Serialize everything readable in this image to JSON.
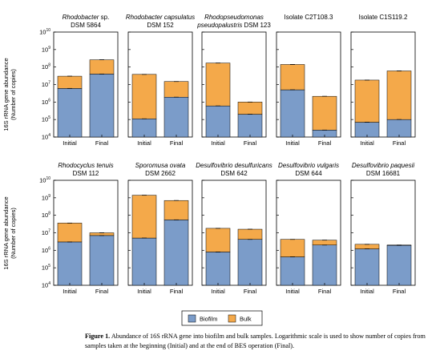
{
  "figure": {
    "caption_lead": "Figure 1.",
    "caption_text": "Abundance of 16S rRNA gene into biofilm and bulk samples. Logarithmic scale is used to show number of copies from samples taken at the beginning (Initial) and at the end of BES operation (Final).",
    "ylabel_line1": "16S rRNA gene abundance",
    "ylabel_line2": "(Number of copies)",
    "legend": [
      {
        "label": "Biofilm",
        "color": "#7b9cc9"
      },
      {
        "label": "Bulk",
        "color": "#f4a94a"
      }
    ]
  },
  "chart_data": [
    {
      "type": "bar",
      "stacked": true,
      "scale": "log",
      "ylim": [
        10000,
        10000000000
      ],
      "yticks": [
        "10^4",
        "10^5",
        "10^6",
        "10^7",
        "10^8",
        "10^9",
        "10^10"
      ],
      "title_italic": "Rhodobacter",
      "title_rest": " sp.",
      "title_line2": "DSM 5864",
      "categories": [
        "Initial",
        "Final"
      ],
      "series": [
        {
          "name": "Biofilm",
          "values": [
            6000000,
            40000000
          ]
        },
        {
          "name": "Bulk",
          "values": [
            24000000,
            220000000
          ]
        }
      ]
    },
    {
      "type": "bar",
      "stacked": true,
      "scale": "log",
      "ylim": [
        10000,
        10000000000
      ],
      "title_italic": "Rhodobacter capsulatus",
      "title_rest": "",
      "title_line2": "DSM 152",
      "categories": [
        "Initial",
        "Final"
      ],
      "series": [
        {
          "name": "Biofilm",
          "values": [
            110000,
            1900000
          ]
        },
        {
          "name": "Bulk",
          "values": [
            38000000,
            13000000
          ]
        }
      ]
    },
    {
      "type": "bar",
      "stacked": true,
      "scale": "log",
      "ylim": [
        10000,
        10000000000
      ],
      "title_italic": "Rhodopseudomonas",
      "title_rest": "",
      "title_line2_italic": "pseudopalustris",
      "title_line2": " DSM 123",
      "categories": [
        "Initial",
        "Final"
      ],
      "series": [
        {
          "name": "Biofilm",
          "values": [
            600000,
            200000
          ]
        },
        {
          "name": "Bulk",
          "values": [
            169000000,
            800000
          ]
        }
      ]
    },
    {
      "type": "bar",
      "stacked": true,
      "scale": "log",
      "ylim": [
        10000,
        10000000000
      ],
      "title_italic": "",
      "title_rest": "Isolate C2T108.3",
      "title_line2": "",
      "categories": [
        "Initial",
        "Final"
      ],
      "series": [
        {
          "name": "Biofilm",
          "values": [
            5000000,
            25000
          ]
        },
        {
          "name": "Bulk",
          "values": [
            135000000,
            2100000
          ]
        }
      ]
    },
    {
      "type": "bar",
      "stacked": true,
      "scale": "log",
      "ylim": [
        10000,
        10000000000
      ],
      "title_italic": "",
      "title_rest": "Isolate C1S119.2",
      "title_line2": "",
      "categories": [
        "Initial",
        "Final"
      ],
      "series": [
        {
          "name": "Biofilm",
          "values": [
            70000,
            100000
          ]
        },
        {
          "name": "Bulk",
          "values": [
            17900000,
            59900000
          ]
        }
      ]
    },
    {
      "type": "bar",
      "stacked": true,
      "scale": "log",
      "ylim": [
        10000,
        10000000000
      ],
      "title_italic": "Rhodocyclus tenuis",
      "title_rest": "",
      "title_line2": "DSM 112",
      "categories": [
        "Initial",
        "Final"
      ],
      "series": [
        {
          "name": "Biofilm",
          "values": [
            3000000,
            7000000
          ]
        },
        {
          "name": "Bulk",
          "values": [
            33000000,
            3000000
          ]
        }
      ]
    },
    {
      "type": "bar",
      "stacked": true,
      "scale": "log",
      "ylim": [
        10000,
        10000000000
      ],
      "title_italic": "Sporomusa ovata",
      "title_rest": "",
      "title_line2": "DSM 2662",
      "categories": [
        "Initial",
        "Final"
      ],
      "series": [
        {
          "name": "Biofilm",
          "values": [
            5000000,
            55000000
          ]
        },
        {
          "name": "Bulk",
          "values": [
            1395000000,
            645000000
          ]
        }
      ]
    },
    {
      "type": "bar",
      "stacked": true,
      "scale": "log",
      "ylim": [
        10000,
        10000000000
      ],
      "title_italic": "Desulfovibrio desulfuricans",
      "title_rest": "",
      "title_line2": "DSM 642",
      "categories": [
        "Initial",
        "Final"
      ],
      "series": [
        {
          "name": "Biofilm",
          "values": [
            800000,
            4200000
          ]
        },
        {
          "name": "Bulk",
          "values": [
            17200000,
            11800000
          ]
        }
      ]
    },
    {
      "type": "bar",
      "stacked": true,
      "scale": "log",
      "ylim": [
        10000,
        10000000000
      ],
      "title_italic": "Desulfovibrio vulgaris",
      "title_rest": "",
      "title_line2": "DSM 644",
      "categories": [
        "Initial",
        "Final"
      ],
      "series": [
        {
          "name": "Biofilm",
          "values": [
            420000,
            2000000
          ]
        },
        {
          "name": "Bulk",
          "values": [
            3780000,
            1800000
          ]
        }
      ]
    },
    {
      "type": "bar",
      "stacked": true,
      "scale": "log",
      "ylim": [
        10000,
        10000000000
      ],
      "title_italic": "Desulfovibrio paquesii",
      "title_rest": "",
      "title_line2": "DSM 16681",
      "categories": [
        "Initial",
        "Final"
      ],
      "series": [
        {
          "name": "Biofilm",
          "values": [
            1200000,
            1900000
          ]
        },
        {
          "name": "Bulk",
          "values": [
            1000000,
            100000
          ]
        }
      ]
    }
  ]
}
